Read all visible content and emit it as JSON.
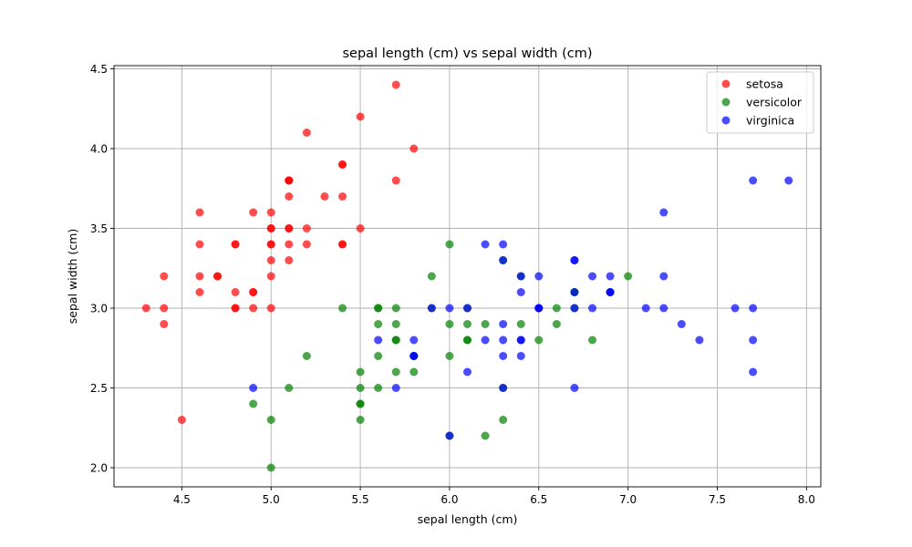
{
  "chart_data": {
    "type": "scatter",
    "title": "sepal length (cm) vs sepal width (cm)",
    "xlabel": "sepal length (cm)",
    "ylabel": "sepal width (cm)",
    "xlim": [
      4.12,
      8.08
    ],
    "ylim": [
      1.88,
      4.52
    ],
    "xticks": [
      "4.5",
      "5.0",
      "5.5",
      "6.0",
      "6.5",
      "7.0",
      "7.5",
      "8.0"
    ],
    "yticks": [
      "2.0",
      "2.5",
      "3.0",
      "3.5",
      "4.0",
      "4.5"
    ],
    "grid": true,
    "legend_position": "top-right",
    "series": [
      {
        "name": "setosa",
        "color": "#ff0000",
        "x": [
          5.1,
          4.9,
          4.7,
          4.6,
          5.0,
          5.4,
          4.6,
          5.0,
          4.4,
          4.9,
          5.4,
          4.8,
          4.8,
          4.3,
          5.8,
          5.7,
          5.4,
          5.1,
          5.7,
          5.1,
          5.4,
          5.1,
          4.6,
          5.1,
          4.8,
          5.0,
          5.0,
          5.2,
          5.2,
          4.7,
          4.8,
          5.4,
          5.2,
          5.5,
          4.9,
          5.0,
          5.5,
          4.9,
          4.4,
          5.1,
          5.0,
          4.5,
          4.4,
          5.0,
          5.1,
          4.8,
          5.1,
          4.6,
          5.3,
          5.0
        ],
        "y": [
          3.5,
          3.0,
          3.2,
          3.1,
          3.6,
          3.9,
          3.4,
          3.4,
          2.9,
          3.1,
          3.7,
          3.4,
          3.0,
          3.0,
          4.0,
          4.4,
          3.9,
          3.5,
          3.8,
          3.8,
          3.4,
          3.7,
          3.6,
          3.3,
          3.4,
          3.0,
          3.4,
          3.5,
          3.4,
          3.2,
          3.1,
          3.4,
          4.1,
          4.2,
          3.1,
          3.2,
          3.5,
          3.6,
          3.0,
          3.4,
          3.5,
          2.3,
          3.2,
          3.5,
          3.8,
          3.0,
          3.8,
          3.2,
          3.7,
          3.3
        ]
      },
      {
        "name": "versicolor",
        "color": "#008000",
        "x": [
          7.0,
          6.4,
          6.9,
          5.5,
          6.5,
          5.7,
          6.3,
          4.9,
          6.6,
          5.2,
          5.0,
          5.9,
          6.0,
          6.1,
          5.6,
          6.7,
          5.6,
          5.8,
          6.2,
          5.6,
          5.9,
          6.1,
          6.3,
          6.1,
          6.4,
          6.6,
          6.8,
          6.7,
          6.0,
          5.7,
          5.5,
          5.5,
          5.8,
          6.0,
          5.4,
          6.0,
          6.7,
          6.3,
          5.6,
          5.5,
          5.5,
          6.1,
          5.8,
          5.0,
          5.6,
          5.7,
          5.7,
          6.2,
          5.1,
          5.7
        ],
        "y": [
          3.2,
          3.2,
          3.1,
          2.3,
          2.8,
          2.8,
          3.3,
          2.4,
          2.9,
          2.7,
          2.0,
          3.0,
          2.2,
          2.9,
          2.9,
          3.1,
          3.0,
          2.7,
          2.2,
          2.5,
          3.2,
          2.8,
          2.5,
          2.8,
          2.9,
          3.0,
          2.8,
          3.0,
          2.9,
          2.6,
          2.4,
          2.4,
          2.7,
          2.7,
          3.0,
          3.4,
          3.1,
          2.3,
          3.0,
          2.5,
          2.6,
          3.0,
          2.6,
          2.3,
          2.7,
          3.0,
          2.9,
          2.9,
          2.5,
          2.8
        ]
      },
      {
        "name": "virginica",
        "color": "#0000ff",
        "x": [
          6.3,
          5.8,
          7.1,
          6.3,
          6.5,
          7.6,
          4.9,
          7.3,
          6.7,
          7.2,
          6.5,
          6.4,
          6.8,
          5.7,
          5.8,
          6.4,
          6.5,
          7.7,
          7.7,
          6.0,
          6.9,
          5.6,
          7.7,
          6.3,
          6.7,
          7.2,
          6.2,
          6.1,
          6.4,
          7.2,
          7.4,
          7.9,
          6.4,
          6.3,
          6.1,
          7.7,
          6.3,
          6.4,
          6.0,
          6.9,
          6.7,
          6.9,
          5.8,
          6.8,
          6.7,
          6.7,
          6.3,
          6.5,
          6.2,
          5.9
        ],
        "y": [
          3.3,
          2.7,
          3.0,
          2.9,
          3.0,
          3.0,
          2.5,
          2.9,
          2.5,
          3.6,
          3.2,
          2.7,
          3.0,
          2.5,
          2.8,
          3.2,
          3.0,
          3.8,
          2.6,
          2.2,
          3.2,
          2.8,
          2.8,
          2.7,
          3.3,
          3.2,
          2.8,
          3.0,
          2.8,
          3.0,
          2.8,
          3.8,
          2.8,
          2.8,
          2.6,
          3.0,
          3.4,
          3.1,
          3.0,
          3.1,
          3.1,
          3.1,
          2.7,
          3.2,
          3.3,
          3.0,
          2.5,
          3.0,
          3.4,
          3.0
        ]
      }
    ]
  }
}
